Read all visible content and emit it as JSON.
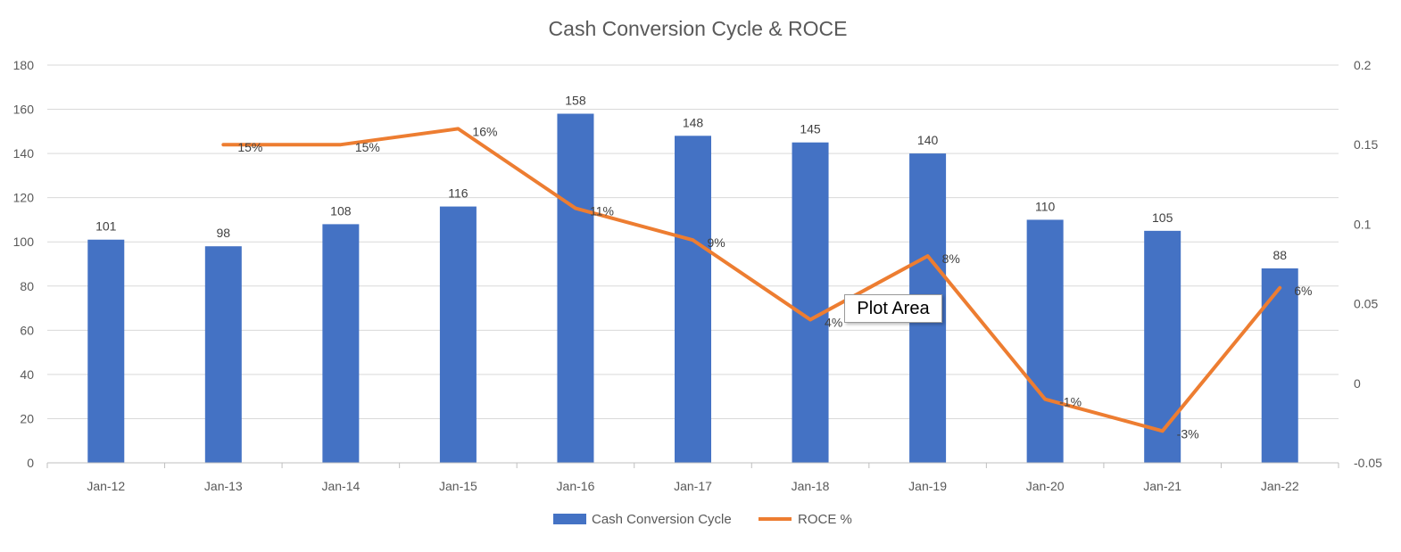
{
  "chart_data": {
    "type": "bar",
    "title": "Cash Conversion Cycle & ROCE",
    "categories": [
      "Jan-12",
      "Jan-13",
      "Jan-14",
      "Jan-15",
      "Jan-16",
      "Jan-17",
      "Jan-18",
      "Jan-19",
      "Jan-20",
      "Jan-21",
      "Jan-22"
    ],
    "series": [
      {
        "name": "Cash Conversion Cycle",
        "type": "bar",
        "axis": "left",
        "color": "#4472C4",
        "values": [
          101,
          98,
          108,
          116,
          158,
          148,
          145,
          140,
          110,
          105,
          88
        ],
        "labels": [
          "101",
          "98",
          "108",
          "116",
          "158",
          "148",
          "145",
          "140",
          "110",
          "105",
          "88"
        ]
      },
      {
        "name": "ROCE %",
        "type": "line",
        "axis": "right",
        "color": "#ED7D31",
        "values": [
          null,
          0.15,
          0.15,
          0.16,
          0.11,
          0.09,
          0.04,
          0.08,
          -0.01,
          -0.03,
          0.06
        ],
        "labels": [
          "",
          "15%",
          "15%",
          "16%",
          "11%",
          "9%",
          "4%",
          "8%",
          "-1%",
          "-3%",
          "6%"
        ]
      }
    ],
    "ylim": [
      0,
      180
    ],
    "yticks": [
      "0",
      "20",
      "40",
      "60",
      "80",
      "100",
      "120",
      "140",
      "160",
      "180"
    ],
    "y2lim": [
      -0.05,
      0.2
    ],
    "y2ticks": [
      "-0.05",
      "0",
      "0.05",
      "0.1",
      "0.15",
      "0.2"
    ],
    "grid": true,
    "legend_position": "bottom"
  },
  "tooltip": {
    "label": "Plot Area"
  }
}
